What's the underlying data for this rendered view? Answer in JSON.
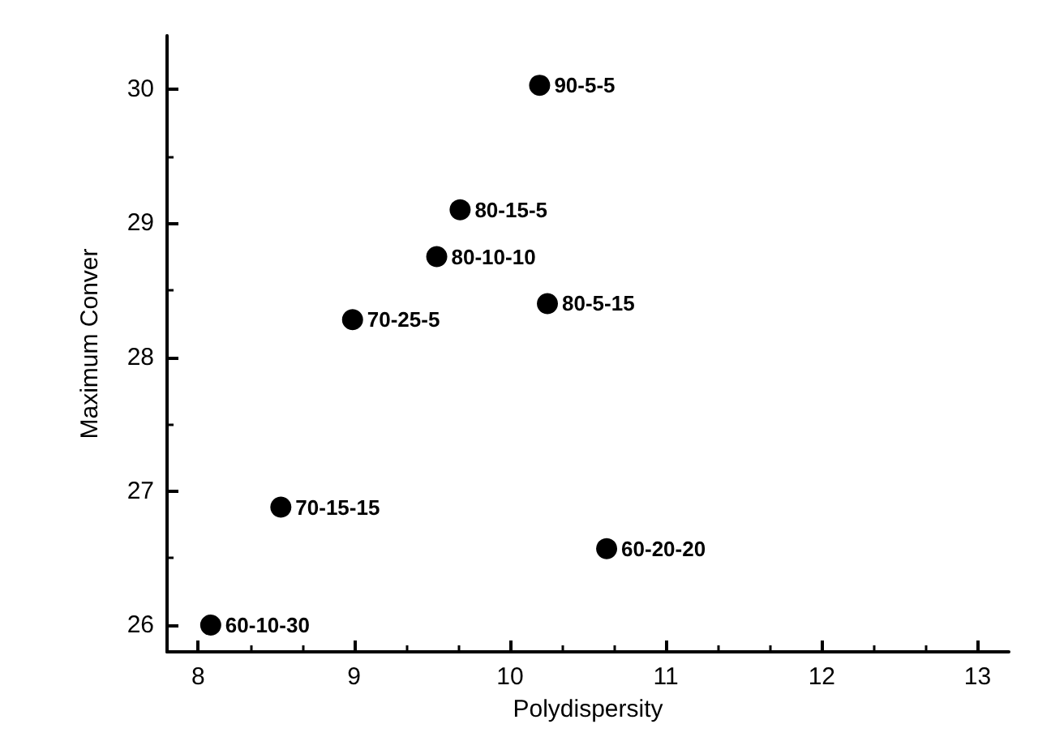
{
  "chart_data": {
    "type": "scatter",
    "xlabel": "Polydispersity",
    "ylabel": "Maximum Conver",
    "x": [
      10.19,
      9.68,
      9.53,
      10.24,
      8.99,
      8.53,
      10.62,
      8.08
    ],
    "values": [
      30.03,
      29.1,
      28.75,
      28.4,
      28.28,
      26.88,
      26.57,
      26.0
    ],
    "color": "#000000",
    "marker": "circle",
    "grid": false,
    "xlim": [
      7.8,
      13.2
    ],
    "xticks": [
      8,
      9,
      10,
      11,
      12,
      13
    ],
    "ylim": [
      25.8,
      30.4
    ],
    "yticks": [
      26,
      27,
      28,
      29,
      30
    ],
    "annotations": [
      {
        "text": "90-5-5",
        "x": 10.19,
        "y": 30.03
      },
      {
        "text": "80-15-5",
        "x": 9.68,
        "y": 29.1
      },
      {
        "text": "80-10-10",
        "x": 9.53,
        "y": 28.75
      },
      {
        "text": "80-5-15",
        "x": 10.24,
        "y": 28.4
      },
      {
        "text": "70-25-5",
        "x": 8.99,
        "y": 28.28
      },
      {
        "text": "70-15-15",
        "x": 8.53,
        "y": 26.88
      },
      {
        "text": "60-20-20",
        "x": 10.62,
        "y": 26.57
      },
      {
        "text": "60-10-30",
        "x": 8.08,
        "y": 26.0
      }
    ]
  }
}
